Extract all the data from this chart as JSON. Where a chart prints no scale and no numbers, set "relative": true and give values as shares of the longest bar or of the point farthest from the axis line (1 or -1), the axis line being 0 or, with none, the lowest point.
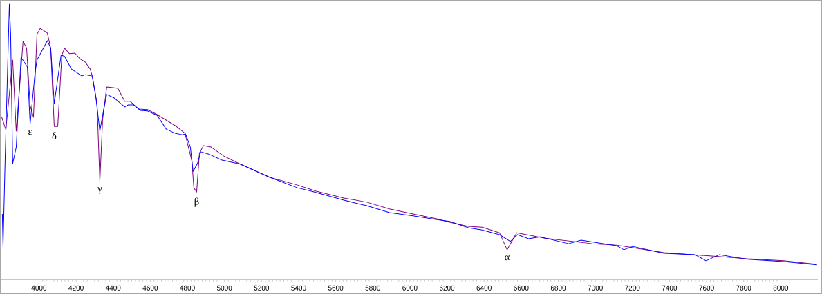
{
  "chart_data": {
    "type": "line",
    "relative": true,
    "xlim": [
      3797,
      8200
    ],
    "xticks": [
      4000,
      4200,
      4400,
      4600,
      4800,
      5000,
      5200,
      5400,
      5600,
      5800,
      6000,
      6200,
      6400,
      6600,
      6800,
      7000,
      7200,
      7400,
      7600,
      7800,
      8000
    ],
    "series": [
      {
        "color": "#800080",
        "x": [
          3799,
          3821,
          3858,
          3877,
          3914,
          3933,
          3952,
          3970,
          3989,
          4007,
          4045,
          4063,
          4082,
          4101,
          4123,
          4138,
          4164,
          4194,
          4220,
          4250,
          4276,
          4287,
          4313,
          4328,
          4343,
          4365,
          4399,
          4425,
          4462,
          4492,
          4537,
          4585,
          4637,
          4660,
          4734,
          4787,
          4824,
          4835,
          4850,
          4865,
          4887,
          4928,
          4995,
          5085,
          5245,
          5394,
          5495,
          5644,
          5767,
          5890,
          6017,
          6140,
          6214,
          6315,
          6390,
          6483,
          6524,
          6576,
          6729,
          6986,
          7113,
          7180,
          7370,
          7627,
          7821,
          8015,
          8195
        ],
        "values": [
          0.589,
          0.544,
          0.797,
          0.539,
          0.865,
          0.84,
          0.632,
          0.589,
          0.89,
          0.912,
          0.895,
          0.84,
          0.556,
          0.556,
          0.815,
          0.84,
          0.82,
          0.822,
          0.802,
          0.789,
          0.764,
          0.739,
          0.639,
          0.356,
          0.581,
          0.699,
          0.697,
          0.694,
          0.647,
          0.647,
          0.619,
          0.617,
          0.599,
          0.589,
          0.559,
          0.531,
          0.431,
          0.333,
          0.318,
          0.459,
          0.486,
          0.481,
          0.449,
          0.419,
          0.371,
          0.343,
          0.321,
          0.296,
          0.281,
          0.256,
          0.238,
          0.221,
          0.208,
          0.193,
          0.19,
          0.17,
          0.108,
          0.17,
          0.15,
          0.13,
          0.125,
          0.118,
          0.098,
          0.085,
          0.075,
          0.068,
          0.055
        ]
      },
      {
        "color": "#0000ff",
        "x": [
          3802,
          3806,
          3817,
          3840,
          3847,
          3858,
          3877,
          3903,
          3937,
          3952,
          3978,
          3989,
          4045,
          4063,
          4082,
          4119,
          4138,
          4175,
          4231,
          4250,
          4287,
          4306,
          4328,
          4350,
          4365,
          4406,
          4462,
          4481,
          4511,
          4548,
          4585,
          4637,
          4686,
          4734,
          4772,
          4790,
          4816,
          4831,
          4854,
          4872,
          4921,
          4984,
          5085,
          5245,
          5394,
          5469,
          5644,
          5767,
          5890,
          6017,
          6140,
          6214,
          6315,
          6390,
          6483,
          6542,
          6580,
          6639,
          6703,
          6856,
          6923,
          7113,
          7154,
          7202,
          7370,
          7538,
          7597,
          7668,
          7821,
          8015,
          8195
        ],
        "values": [
          0.238,
          0.118,
          0.431,
          1.0,
          0.89,
          0.421,
          0.481,
          0.807,
          0.772,
          0.564,
          0.747,
          0.797,
          0.867,
          0.84,
          0.639,
          0.815,
          0.81,
          0.764,
          0.739,
          0.744,
          0.739,
          0.664,
          0.539,
          0.622,
          0.672,
          0.659,
          0.627,
          0.634,
          0.634,
          0.614,
          0.612,
          0.596,
          0.546,
          0.531,
          0.526,
          0.529,
          0.481,
          0.393,
          0.421,
          0.464,
          0.454,
          0.434,
          0.419,
          0.371,
          0.333,
          0.321,
          0.288,
          0.268,
          0.243,
          0.231,
          0.218,
          0.211,
          0.188,
          0.18,
          0.163,
          0.138,
          0.163,
          0.148,
          0.155,
          0.13,
          0.143,
          0.123,
          0.108,
          0.12,
          0.095,
          0.09,
          0.068,
          0.09,
          0.073,
          0.065,
          0.053
        ]
      }
    ],
    "annotations": [
      {
        "text": "ε",
        "x": 3952,
        "y": 0.564
      },
      {
        "text": "δ",
        "x": 4082,
        "y": 0.556
      },
      {
        "text": "γ",
        "x": 4328,
        "y": 0.356
      },
      {
        "text": "β",
        "x": 4850,
        "y": 0.318
      },
      {
        "text": "α",
        "x": 6524,
        "y": 0.108
      }
    ]
  }
}
